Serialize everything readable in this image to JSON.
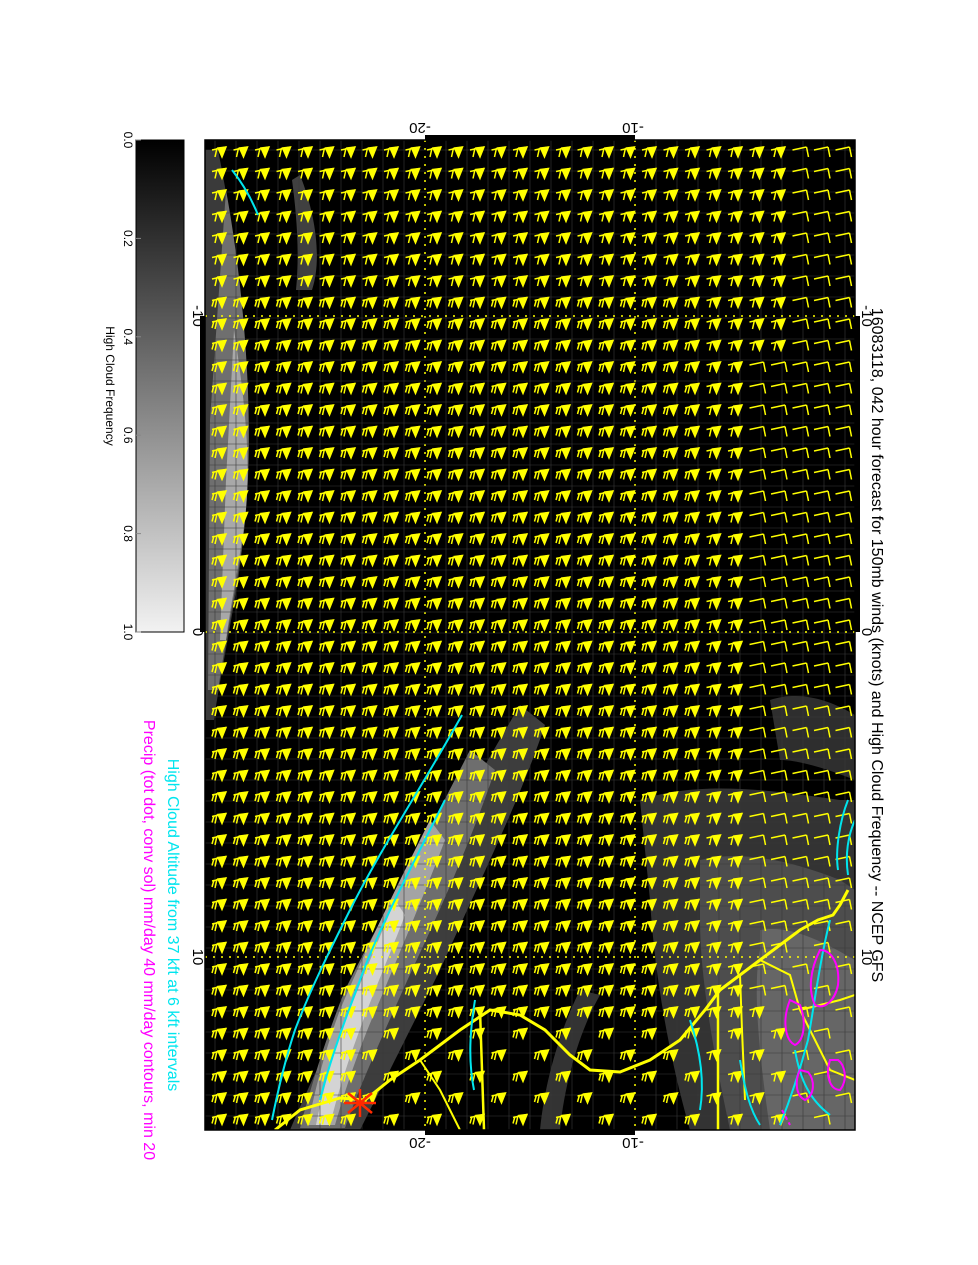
{
  "title": "16083118, 042 hour forecast for 150mb winds (knots) and High Cloud Frequency -- NCEP GFS",
  "legend_altitude": "High Cloud Altitude from 37 kft at 6 kft intervals",
  "legend_precip": "Precip (tot dot, conv sol) mm/day 40 mm/day contours, min 20",
  "colorbar": {
    "label": "High Cloud Frequency",
    "ticks": [
      "0.0",
      "0.2",
      "0.4",
      "0.6",
      "0.8",
      "1.0"
    ]
  },
  "axes": {
    "top_ticks": [
      "-20",
      "-10"
    ],
    "bottom_ticks": [
      "-20",
      "-10"
    ],
    "left_ticks": [
      "-10",
      "0",
      "10"
    ],
    "right_ticks": [
      "-10",
      "0",
      "10"
    ]
  },
  "colors": {
    "barbs": "#ffff00",
    "coast": "#ffff00",
    "altitude_contour": "#00e5ee",
    "precip_contour": "#ff00ff",
    "marker": "#ff2a00",
    "background": "#000000"
  }
}
